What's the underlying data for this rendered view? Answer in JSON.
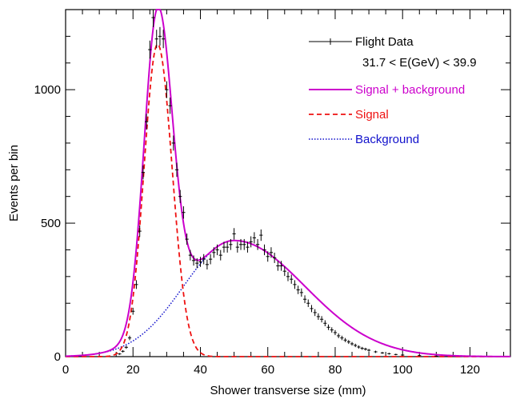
{
  "chart_data": {
    "type": "line",
    "xlabel": "Shower transverse size (mm)",
    "ylabel": "Events per bin",
    "xlim": [
      0,
      132
    ],
    "ylim": [
      0,
      1300
    ],
    "x_ticks": [
      0,
      20,
      40,
      60,
      80,
      100,
      120
    ],
    "y_ticks": [
      0,
      500,
      1000
    ],
    "legend_position": "top-right",
    "legend": [
      {
        "label": "Flight Data",
        "style": "data-points",
        "color": "#000000"
      },
      {
        "label": "31.7 < E(GeV) < 39.9",
        "style": "text-only",
        "color": "#000000"
      },
      {
        "label": "Signal + background",
        "style": "solid",
        "color": "#cc00cc"
      },
      {
        "label": "Signal",
        "style": "dashed",
        "color": "#ee1111"
      },
      {
        "label": "Background",
        "style": "dotted",
        "color": "#1111cc"
      }
    ],
    "model": {
      "signal": {
        "amplitude": 1170,
        "mean": 27.3,
        "sigma_left": 4.0,
        "sigma_right": 4.3
      },
      "background": {
        "amplitude": 435,
        "mean": 50.0,
        "sigma_left": 15.0,
        "sigma_right": 21.0
      },
      "x_min": 0,
      "x_max": 132
    },
    "series": [
      {
        "name": "Flight Data",
        "style": "points",
        "color": "#000000",
        "points": [
          [
            16,
            10
          ],
          [
            17,
            20
          ],
          [
            18,
            35
          ],
          [
            19,
            70
          ],
          [
            20,
            170
          ],
          [
            21,
            270
          ],
          [
            22,
            470
          ],
          [
            23,
            690
          ],
          [
            24,
            880
          ],
          [
            25,
            1150
          ],
          [
            26,
            1270
          ],
          [
            27,
            1190
          ],
          [
            28,
            1200
          ],
          [
            29,
            1190
          ],
          [
            30,
            1000
          ],
          [
            31,
            940
          ],
          [
            32,
            800
          ],
          [
            33,
            700
          ],
          [
            34,
            600
          ],
          [
            35,
            540
          ],
          [
            36,
            440
          ],
          [
            37,
            380
          ],
          [
            38,
            360
          ],
          [
            39,
            350
          ],
          [
            40,
            355
          ],
          [
            41,
            365
          ],
          [
            42,
            345
          ],
          [
            43,
            365
          ],
          [
            44,
            390
          ],
          [
            45,
            400
          ],
          [
            46,
            380
          ],
          [
            47,
            410
          ],
          [
            48,
            410
          ],
          [
            49,
            420
          ],
          [
            50,
            460
          ],
          [
            51,
            410
          ],
          [
            52,
            420
          ],
          [
            53,
            420
          ],
          [
            54,
            410
          ],
          [
            55,
            430
          ],
          [
            56,
            445
          ],
          [
            57,
            420
          ],
          [
            58,
            455
          ],
          [
            59,
            400
          ],
          [
            60,
            375
          ],
          [
            61,
            390
          ],
          [
            62,
            370
          ],
          [
            63,
            340
          ],
          [
            64,
            340
          ],
          [
            65,
            320
          ],
          [
            66,
            300
          ],
          [
            67,
            290
          ],
          [
            68,
            270
          ],
          [
            69,
            250
          ],
          [
            70,
            240
          ],
          [
            71,
            215
          ],
          [
            72,
            200
          ],
          [
            73,
            180
          ],
          [
            74,
            165
          ],
          [
            75,
            150
          ],
          [
            76,
            140
          ],
          [
            77,
            125
          ],
          [
            78,
            110
          ],
          [
            79,
            100
          ],
          [
            80,
            90
          ],
          [
            81,
            78
          ],
          [
            82,
            70
          ],
          [
            83,
            62
          ],
          [
            84,
            55
          ],
          [
            85,
            48
          ],
          [
            86,
            42
          ],
          [
            87,
            36
          ],
          [
            88,
            31
          ],
          [
            89,
            28
          ],
          [
            90,
            24
          ],
          [
            92,
            18
          ],
          [
            94,
            14
          ],
          [
            96,
            11
          ],
          [
            98,
            8
          ],
          [
            100,
            6
          ],
          [
            105,
            4
          ],
          [
            110,
            2
          ]
        ]
      },
      {
        "name": "Signal + background",
        "style": "solid",
        "color": "#cc00cc"
      },
      {
        "name": "Signal",
        "style": "dashed",
        "color": "#ee1111"
      },
      {
        "name": "Background",
        "style": "dotted",
        "color": "#1111cc"
      }
    ]
  }
}
